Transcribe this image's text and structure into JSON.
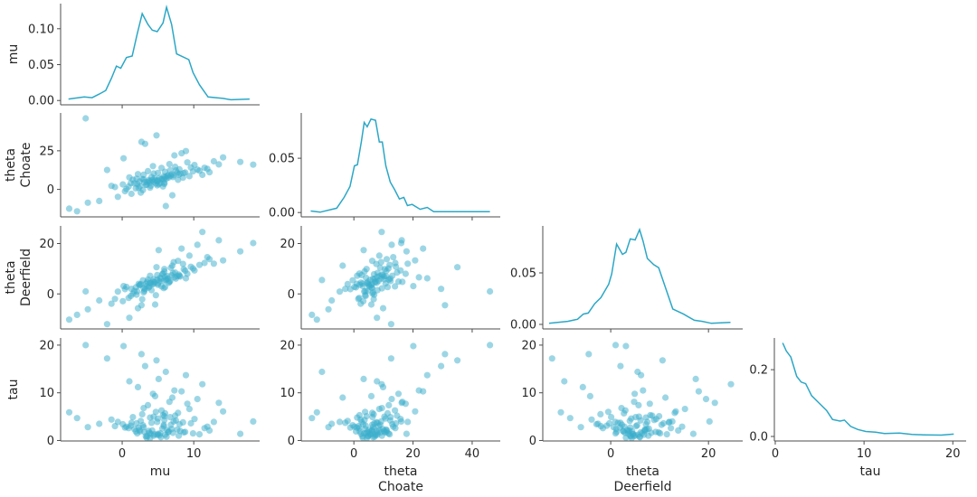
{
  "chart_data": {
    "type": "scatter",
    "layout": "pair-plot lower triangle with KDE on diagonal",
    "colors": {
      "marker": "#3aaecb",
      "line": "#2ba7c6",
      "axis": "#4d4d4d"
    },
    "variables": [
      {
        "key": "mu",
        "label": [
          "mu"
        ],
        "lim": [
          -8.6,
          19.2
        ],
        "ticks": [
          0,
          10
        ]
      },
      {
        "key": "theta_choate",
        "label": [
          "theta",
          "Choate"
        ],
        "lim": [
          -17.8,
          49.5
        ],
        "ticks": [
          0,
          20,
          40
        ],
        "yticks": [
          0,
          25
        ]
      },
      {
        "key": "theta_deerfield",
        "label": [
          "theta",
          "Deerfield"
        ],
        "lim": [
          -13.9,
          27
        ],
        "ticks": [
          0,
          20
        ],
        "yticks": [
          0,
          20
        ]
      },
      {
        "key": "tau",
        "label": [
          "tau"
        ],
        "lim": [
          -0.1,
          21.5
        ],
        "ticks": [
          0,
          10,
          20
        ],
        "yticks": [
          0,
          10,
          20
        ]
      }
    ],
    "diagonal": [
      {
        "ylim": [
          -0.006,
          0.135
        ],
        "yticks": [
          "0.00",
          "0.05",
          "0.10"
        ],
        "kde": [
          [
            -7.5,
            0.002
          ],
          [
            -5.3,
            0.005
          ],
          [
            -4.2,
            0.004
          ],
          [
            -3.2,
            0.009
          ],
          [
            -2.3,
            0.014
          ],
          [
            -1.5,
            0.031
          ],
          [
            -0.8,
            0.048
          ],
          [
            -0.2,
            0.045
          ],
          [
            0.6,
            0.06
          ],
          [
            1.4,
            0.062
          ],
          [
            2.1,
            0.093
          ],
          [
            2.8,
            0.121
          ],
          [
            3.6,
            0.106
          ],
          [
            4.2,
            0.098
          ],
          [
            4.9,
            0.096
          ],
          [
            5.7,
            0.108
          ],
          [
            6.2,
            0.13
          ],
          [
            6.9,
            0.106
          ],
          [
            7.6,
            0.065
          ],
          [
            9.3,
            0.057
          ],
          [
            9.9,
            0.039
          ],
          [
            10.8,
            0.022
          ],
          [
            12.0,
            0.005
          ],
          [
            14.1,
            0.003
          ],
          [
            15.2,
            0.001
          ],
          [
            17.8,
            0.002
          ]
        ]
      },
      {
        "ylim": [
          -0.004,
          0.0917
        ],
        "yticks": [
          "0.00",
          "0.05"
        ],
        "kde": [
          [
            -14.6,
            0.0014
          ],
          [
            -11.4,
            0.0003
          ],
          [
            -7.4,
            0.003
          ],
          [
            -5.8,
            0.004
          ],
          [
            -3.3,
            0.014
          ],
          [
            -1.3,
            0.024
          ],
          [
            0.2,
            0.043
          ],
          [
            1.2,
            0.044
          ],
          [
            2.5,
            0.065
          ],
          [
            3.5,
            0.083
          ],
          [
            4.5,
            0.079
          ],
          [
            5.8,
            0.086
          ],
          [
            7.3,
            0.085
          ],
          [
            8.6,
            0.065
          ],
          [
            9.6,
            0.065
          ],
          [
            10.8,
            0.043
          ],
          [
            12.3,
            0.028
          ],
          [
            13.8,
            0.021
          ],
          [
            15.4,
            0.0125
          ],
          [
            16.9,
            0.014
          ],
          [
            18.1,
            0.0064
          ],
          [
            19.7,
            0.0075
          ],
          [
            22.4,
            0.003
          ],
          [
            24.8,
            0.0047
          ],
          [
            27,
            0.0008
          ],
          [
            35,
            0.0008
          ],
          [
            46,
            0.0008
          ]
        ]
      },
      {
        "ylim": [
          -0.0044,
          0.0956
        ],
        "yticks": [
          "0.00",
          "0.05"
        ],
        "kde": [
          [
            -12.6,
            0.001
          ],
          [
            -8.8,
            0.003
          ],
          [
            -6.8,
            0.005
          ],
          [
            -5.6,
            0.01
          ],
          [
            -4.6,
            0.011
          ],
          [
            -3.3,
            0.02
          ],
          [
            -2.0,
            0.026
          ],
          [
            -0.4,
            0.039
          ],
          [
            0.2,
            0.049
          ],
          [
            1.2,
            0.078
          ],
          [
            2.4,
            0.068
          ],
          [
            3.1,
            0.07
          ],
          [
            4.0,
            0.083
          ],
          [
            5.0,
            0.082
          ],
          [
            5.9,
            0.092
          ],
          [
            6.6,
            0.081
          ],
          [
            7.5,
            0.064
          ],
          [
            8.8,
            0.058
          ],
          [
            9.8,
            0.055
          ],
          [
            11.1,
            0.037
          ],
          [
            12.7,
            0.015
          ],
          [
            14.9,
            0.01
          ],
          [
            17.1,
            0.004
          ],
          [
            18.7,
            0.003
          ],
          [
            20.6,
            0.001
          ],
          [
            24.5,
            0.002
          ]
        ]
      },
      {
        "ylim": [
          -0.0135,
          0.295
        ],
        "yticks": [
          "0.0",
          "0.2"
        ],
        "kde": [
          [
            0.84,
            0.28
          ],
          [
            1.24,
            0.256
          ],
          [
            1.75,
            0.238
          ],
          [
            2.42,
            0.18
          ],
          [
            2.92,
            0.163
          ],
          [
            3.43,
            0.158
          ],
          [
            4.1,
            0.122
          ],
          [
            4.94,
            0.1
          ],
          [
            5.78,
            0.078
          ],
          [
            6.45,
            0.051
          ],
          [
            7.3,
            0.046
          ],
          [
            7.8,
            0.049
          ],
          [
            8.5,
            0.03
          ],
          [
            9.3,
            0.021
          ],
          [
            10.2,
            0.015
          ],
          [
            11.3,
            0.013
          ],
          [
            12.3,
            0.009
          ],
          [
            14.0,
            0.01
          ],
          [
            15.4,
            0.006
          ],
          [
            16.7,
            0.005
          ],
          [
            18.7,
            0.004
          ],
          [
            20.1,
            0.007
          ]
        ]
      }
    ],
    "samples_columns": [
      "mu",
      "theta_choate",
      "theta_deerfield",
      "tau"
    ],
    "samples": [
      [
        4.2,
        6.1,
        3.8,
        2.1
      ],
      [
        5.8,
        8.4,
        5.2,
        3.0
      ],
      [
        2.1,
        3.5,
        1.0,
        1.5
      ],
      [
        6.9,
        9.8,
        7.4,
        2.4
      ],
      [
        3.3,
        2.9,
        4.1,
        0.9
      ],
      [
        7.5,
        12.3,
        6.1,
        4.2
      ],
      [
        1.2,
        4.0,
        -0.8,
        3.1
      ],
      [
        4.9,
        5.5,
        5.6,
        1.2
      ],
      [
        8.8,
        11.0,
        9.2,
        1.8
      ],
      [
        0.4,
        -1.2,
        1.9,
        2.7
      ],
      [
        5.5,
        13.9,
        3.0,
        6.3
      ],
      [
        3.9,
        1.1,
        7.2,
        4.8
      ],
      [
        6.2,
        7.0,
        5.9,
        0.8
      ],
      [
        2.8,
        6.7,
        -2.1,
        5.5
      ],
      [
        9.6,
        14.2,
        10.8,
        3.6
      ],
      [
        4.4,
        4.9,
        4.0,
        1.0
      ],
      [
        -1.5,
        2.3,
        -3.9,
        4.4
      ],
      [
        7.1,
        8.0,
        8.3,
        1.6
      ],
      [
        3.0,
        9.5,
        2.2,
        6.8
      ],
      [
        5.9,
        4.3,
        9.9,
        5.1
      ],
      [
        10.8,
        12.1,
        11.5,
        1.3
      ],
      [
        1.9,
        0.7,
        2.6,
        1.9
      ],
      [
        6.6,
        16.4,
        4.8,
        8.1
      ],
      [
        4.7,
        3.8,
        -0.5,
        6.0
      ],
      [
        2.4,
        5.1,
        3.4,
        2.2
      ],
      [
        8.1,
        10.2,
        6.9,
        2.0
      ],
      [
        -0.6,
        -4.8,
        0.9,
        3.9
      ],
      [
        5.2,
        7.3,
        5.0,
        1.1
      ],
      [
        3.6,
        11.8,
        5.7,
        7.4
      ],
      [
        7.8,
        6.2,
        13.1,
        5.8
      ],
      [
        0.9,
        1.8,
        -1.6,
        2.6
      ],
      [
        6.4,
        9.1,
        6.1,
        1.7
      ],
      [
        4.0,
        2.4,
        4.5,
        1.4
      ],
      [
        9.1,
        17.5,
        8.0,
        7.7
      ],
      [
        2.6,
        -2.1,
        3.9,
        4.1
      ],
      [
        5.6,
        6.8,
        7.8,
        2.5
      ],
      [
        11.9,
        13.3,
        14.6,
        2.9
      ],
      [
        3.1,
        4.6,
        1.2,
        1.8
      ],
      [
        7.3,
        22.0,
        6.6,
        10.5
      ],
      [
        4.6,
        5.9,
        -4.2,
        9.3
      ],
      [
        -3.2,
        -7.5,
        -2.6,
        3.5
      ],
      [
        5.0,
        10.7,
        4.2,
        4.6
      ],
      [
        6.8,
        8.9,
        10.4,
        3.3
      ],
      [
        1.5,
        6.3,
        0.1,
        4.9
      ],
      [
        8.5,
        7.6,
        11.9,
        3.8
      ],
      [
        3.4,
        3.0,
        3.1,
        0.6
      ],
      [
        10.1,
        15.8,
        9.3,
        4.5
      ],
      [
        2.2,
        9.9,
        -5.7,
        11.2
      ],
      [
        5.3,
        4.1,
        6.4,
        1.5
      ],
      [
        6.0,
        11.4,
        2.7,
        5.7
      ],
      [
        -4.8,
        -8.6,
        -6.1,
        2.8
      ],
      [
        7.7,
        10.9,
        7.0,
        2.3
      ],
      [
        4.3,
        15.1,
        4.9,
        9.8
      ],
      [
        0.1,
        3.2,
        -2.9,
        3.4
      ],
      [
        9.4,
        8.6,
        15.2,
        6.6
      ],
      [
        3.7,
        6.0,
        2.5,
        2.0
      ],
      [
        5.7,
        1.9,
        8.1,
        5.3
      ],
      [
        12.8,
        18.2,
        12.0,
        3.9
      ],
      [
        2.9,
        -0.4,
        5.4,
        3.2
      ],
      [
        6.5,
        7.7,
        4.4,
        1.9
      ],
      [
        -6.3,
        -14.2,
        -8.3,
        4.7
      ],
      [
        8.9,
        24.8,
        6.2,
        13.7
      ],
      [
        1.0,
        7.8,
        -9.5,
        12.4
      ],
      [
        5.1,
        3.3,
        17.4,
        12.9
      ],
      [
        3.2,
        29.5,
        2.0,
        15.6
      ],
      [
        7.0,
        -3.8,
        11.2,
        9.0
      ],
      [
        10.5,
        12.8,
        19.5,
        8.7
      ],
      [
        -2.1,
        12.6,
        -12.0,
        17.2
      ],
      [
        4.8,
        35.0,
        10.6,
        16.8
      ],
      [
        6.1,
        -10.8,
        5.5,
        14.4
      ],
      [
        13.5,
        16.2,
        21.3,
        7.9
      ],
      [
        0.2,
        20.1,
        3.1,
        19.8
      ],
      [
        -5.1,
        46.0,
        1.0,
        20.0
      ],
      [
        11.2,
        9.4,
        24.6,
        11.8
      ],
      [
        2.7,
        30.8,
        -4.5,
        18.1
      ],
      [
        8.3,
        23.4,
        18.0,
        10.3
      ],
      [
        16.5,
        17.8,
        16.9,
        1.4
      ],
      [
        18.3,
        16.0,
        20.2,
        4.0
      ],
      [
        -7.4,
        -12.5,
        -10.2,
        5.9
      ],
      [
        14.1,
        20.7,
        13.3,
        6.1
      ],
      [
        4.5,
        7.2,
        4.6,
        1.3
      ],
      [
        5.4,
        6.5,
        6.0,
        0.7
      ],
      [
        3.8,
        5.3,
        2.9,
        1.6
      ],
      [
        6.3,
        8.7,
        7.1,
        2.2
      ],
      [
        2.5,
        2.0,
        3.6,
        1.9
      ],
      [
        7.9,
        9.5,
        7.7,
        1.0
      ],
      [
        4.1,
        8.0,
        1.5,
        3.7
      ],
      [
        5.9,
        3.6,
        8.9,
        4.3
      ],
      [
        1.7,
        3.9,
        1.1,
        2.4
      ],
      [
        8.6,
        10.5,
        9.8,
        1.7
      ],
      [
        3.5,
        4.7,
        4.8,
        0.9
      ],
      [
        6.7,
        12.4,
        5.1,
        4.9
      ],
      [
        4.9,
        2.6,
        7.5,
        3.9
      ],
      [
        2.0,
        6.9,
        -0.3,
        3.6
      ],
      [
        9.9,
        11.7,
        10.1,
        1.5
      ],
      [
        5.0,
        5.8,
        3.6,
        1.4
      ],
      [
        0.6,
        0.2,
        2.8,
        2.9
      ],
      [
        7.4,
        14.6,
        8.5,
        5.2
      ],
      [
        3.9,
        4.4,
        4.3,
        0.5
      ],
      [
        6.0,
        7.9,
        6.8,
        1.2
      ],
      [
        -1.0,
        1.5,
        -2.0,
        3.0
      ],
      [
        11.5,
        14.0,
        12.3,
        2.6
      ],
      [
        2.3,
        1.0,
        4.0,
        2.7
      ],
      [
        8.0,
        13.0,
        7.2,
        3.4
      ],
      [
        4.4,
        10.3,
        5.8,
        5.0
      ],
      [
        5.8,
        6.2,
        2.3,
        3.3
      ],
      [
        12.2,
        11.1,
        13.8,
        2.1
      ],
      [
        1.3,
        -2.9,
        2.0,
        3.7
      ],
      [
        7.2,
        9.2,
        12.6,
        4.0
      ],
      [
        3.0,
        6.5,
        0.6,
        2.8
      ]
    ],
    "grid": false,
    "legend": "none"
  }
}
